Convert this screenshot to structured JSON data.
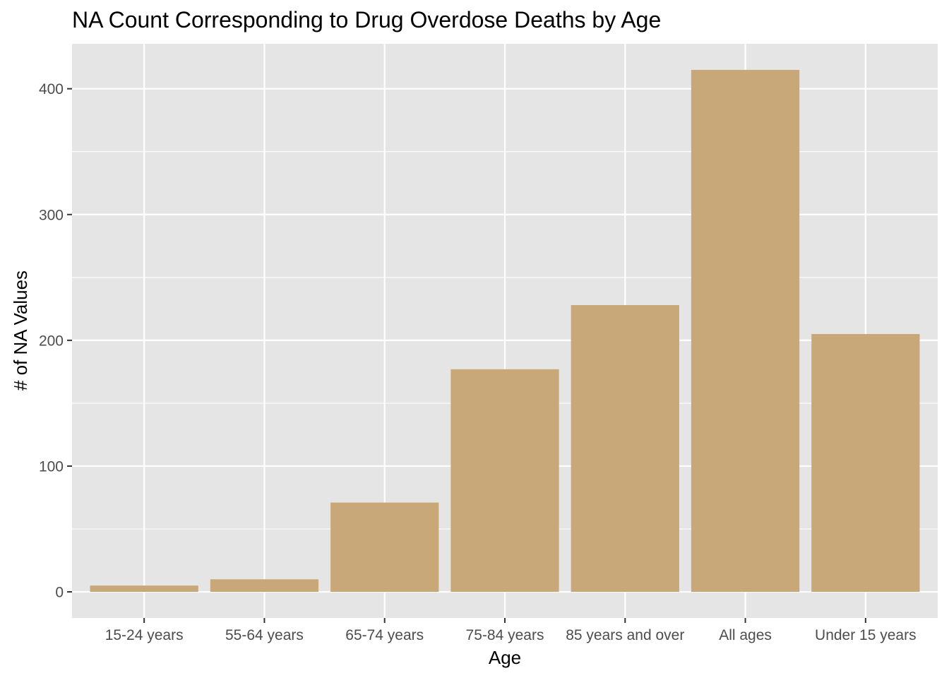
{
  "chart_data": {
    "type": "bar",
    "title": "NA Count Corresponding to Drug Overdose Deaths by Age",
    "xlabel": "Age",
    "ylabel": "# of NA Values",
    "categories": [
      "15-24 years",
      "55-64 years",
      "65-74 years",
      "75-84 years",
      "85 years and over",
      "All ages",
      "Under 15 years"
    ],
    "values": [
      5,
      10,
      71,
      177,
      228,
      415,
      205
    ],
    "yticks": [
      0,
      100,
      200,
      300,
      400
    ],
    "ylim": [
      -20.75,
      435.75
    ],
    "grid": true,
    "legend": "none",
    "colors": {
      "bar": "#C8A779",
      "panel": "#E5E5E5",
      "grid": "#FFFFFF"
    }
  }
}
